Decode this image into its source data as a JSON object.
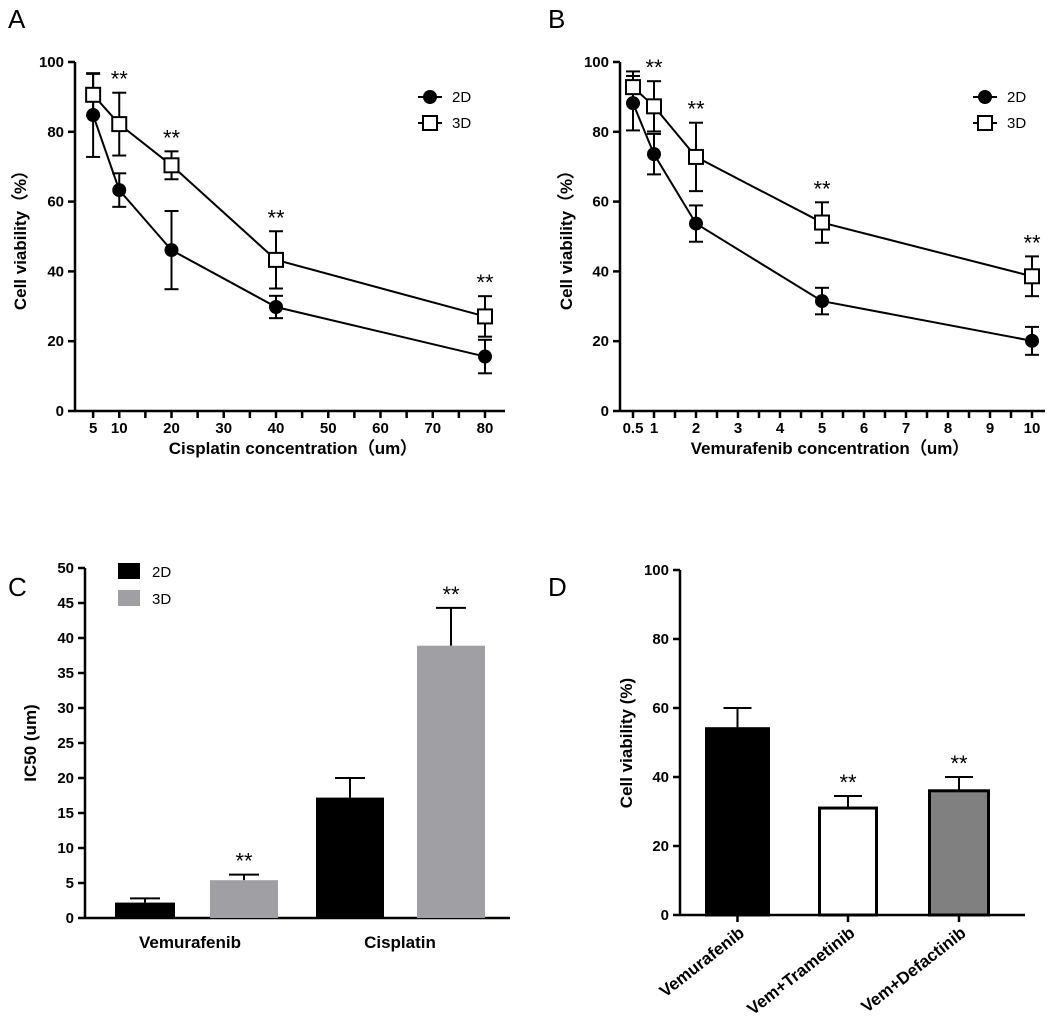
{
  "chart_data": [
    {
      "panel": "A",
      "type": "line",
      "xlabel": "Cisplatin concentration（um）",
      "ylabel": "Cell viability（%）",
      "ylim": [
        0,
        100
      ],
      "xlim": [
        0,
        85
      ],
      "xticks": [
        5,
        10,
        20,
        30,
        40,
        50,
        60,
        70,
        80
      ],
      "yticks": [
        0,
        20,
        40,
        60,
        80,
        100
      ],
      "x": [
        5,
        10,
        20,
        40,
        80
      ],
      "series": [
        {
          "name": "2D",
          "marker": "filled-circle",
          "values": [
            84.8,
            63.3,
            46.1,
            29.8,
            15.6
          ],
          "errors": [
            12,
            4.8,
            11.2,
            3.2,
            4.8
          ]
        },
        {
          "name": "3D",
          "marker": "open-square",
          "values": [
            90.6,
            82.2,
            70.4,
            43.3,
            27.1
          ],
          "errors": [
            6,
            9,
            4,
            8.2,
            5.8
          ]
        }
      ],
      "annotations": [
        "",
        "**",
        "**",
        "**",
        "**"
      ],
      "legend": "top-right"
    },
    {
      "panel": "B",
      "type": "line",
      "xlabel": "Vemurafenib concentration（um）",
      "ylabel": "Cell viability（%）",
      "ylim": [
        0,
        100
      ],
      "xlim": [
        0.2,
        10.4
      ],
      "xticks": [
        0.5,
        1,
        2,
        3,
        4,
        5,
        6,
        7,
        8,
        9,
        10
      ],
      "xticklabels": [
        "0.5",
        "1",
        "2",
        "3",
        "4",
        "5",
        "6",
        "7",
        "8",
        "9",
        "10"
      ],
      "yticks": [
        0,
        20,
        40,
        60,
        80,
        100
      ],
      "x": [
        0.5,
        1,
        2,
        5,
        10
      ],
      "series": [
        {
          "name": "2D",
          "marker": "filled-circle",
          "values": [
            88.2,
            73.6,
            53.7,
            31.5,
            20.1
          ],
          "errors": [
            7.8,
            5.8,
            5.2,
            3.8,
            4
          ]
        },
        {
          "name": "3D",
          "marker": "open-square",
          "values": [
            92.8,
            87.3,
            72.8,
            54.0,
            38.6
          ],
          "errors": [
            4.5,
            7.2,
            9.8,
            5.8,
            5.7
          ]
        }
      ],
      "annotations": [
        "",
        "**",
        "**",
        "**",
        "**"
      ],
      "legend": "top-right"
    },
    {
      "panel": "C",
      "type": "bar",
      "ylabel": "IC50 (um)",
      "ylim": [
        0,
        50
      ],
      "yticks": [
        0,
        5,
        10,
        15,
        20,
        25,
        30,
        35,
        40,
        45,
        50
      ],
      "categories": [
        "Vemurafenib",
        "Cisplatin"
      ],
      "series": [
        {
          "name": "2D",
          "color": "#000000",
          "values": [
            2.2,
            17.2
          ],
          "errors": [
            0.6,
            2.8
          ]
        },
        {
          "name": "3D",
          "color": "#a0a0a4",
          "values": [
            5.4,
            38.9
          ],
          "errors": [
            0.8,
            5.4
          ]
        }
      ],
      "annotations": [
        [
          "",
          "**"
        ],
        [
          "",
          "**"
        ]
      ],
      "legend": "top-left"
    },
    {
      "panel": "D",
      "type": "bar",
      "ylabel": "Cell viability (%)",
      "ylim": [
        0,
        100
      ],
      "yticks": [
        0,
        20,
        40,
        60,
        80,
        100
      ],
      "categories": [
        "Vemurafenib",
        "Vem+Trametinib",
        "Vem+Defactinib"
      ],
      "values": [
        54,
        31,
        36
      ],
      "errors": [
        6,
        3.5,
        4
      ],
      "colors": [
        "#000000",
        "#ffffff",
        "#808080"
      ],
      "annotations": [
        "",
        "**",
        "**"
      ]
    }
  ]
}
